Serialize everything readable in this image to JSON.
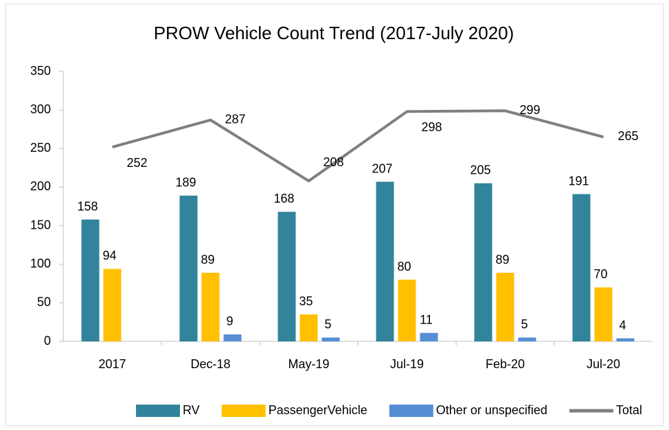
{
  "chart_data": {
    "type": "bar",
    "title": "PROW Vehicle Count Trend (2017-July 2020)",
    "categories": [
      "2017",
      "Dec-18",
      "May-19",
      "Jul-19",
      "Feb-20",
      "Jul-20"
    ],
    "series": [
      {
        "name": "RV",
        "type": "bar",
        "color": "#31849b",
        "values": [
          158,
          189,
          168,
          207,
          205,
          191
        ]
      },
      {
        "name": "PassengerVehicle",
        "type": "bar",
        "color": "#ffc000",
        "values": [
          94,
          89,
          35,
          80,
          89,
          70
        ]
      },
      {
        "name": "Other or unspecified",
        "type": "bar",
        "color": "#558ed5",
        "values": [
          null,
          9,
          5,
          11,
          5,
          4
        ]
      },
      {
        "name": "Total",
        "type": "line",
        "color": "#7f7f7f",
        "values": [
          252,
          287,
          208,
          298,
          299,
          265
        ]
      }
    ],
    "ylim": [
      0,
      350
    ],
    "yticks": [
      0,
      50,
      100,
      150,
      200,
      250,
      300,
      350
    ],
    "grid": false,
    "legend": "bottom"
  }
}
